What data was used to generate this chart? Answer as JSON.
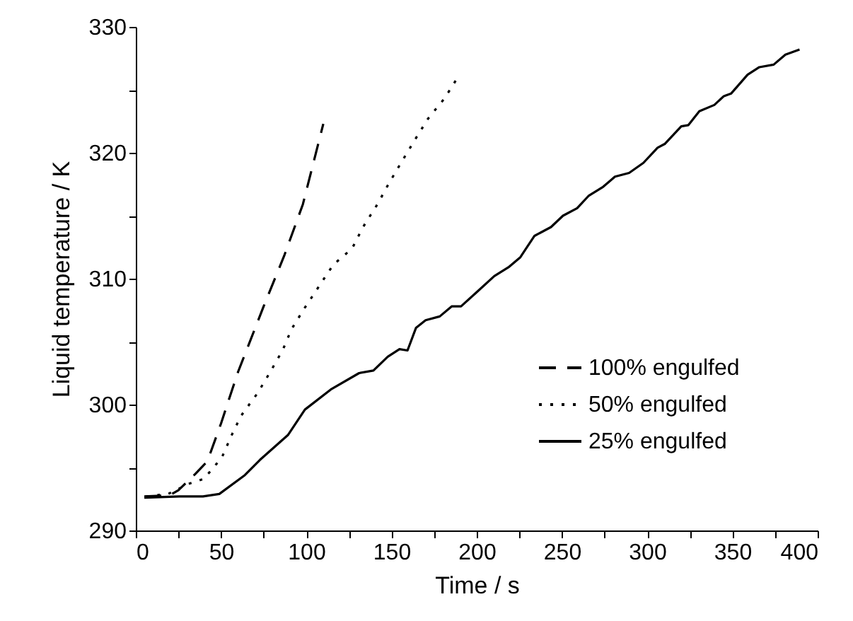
{
  "chart_data": {
    "type": "line",
    "xlabel": "Time / s",
    "ylabel": "Liquid temperature / K",
    "xlim": [
      0,
      400
    ],
    "ylim": [
      290,
      330
    ],
    "xticks": [
      0,
      {
        "value": 25,
        "label": null
      },
      50,
      {
        "value": 75,
        "label": null
      },
      100,
      {
        "value": 125,
        "label": null
      },
      150,
      {
        "value": 175,
        "label": null
      },
      200,
      {
        "value": 225,
        "label": null
      },
      250,
      {
        "value": 275,
        "label": null
      },
      300,
      {
        "value": 325,
        "label": null
      },
      350,
      {
        "value": 375,
        "label": null
      },
      400
    ],
    "yticks": [
      290,
      {
        "value": 295,
        "label": null
      },
      300,
      {
        "value": 305,
        "label": null
      },
      310,
      {
        "value": 315,
        "label": null
      },
      320,
      {
        "value": 325,
        "label": null
      },
      330
    ],
    "grid": false,
    "legend": "bottom right",
    "marker": "none",
    "series": [
      {
        "name": "100% engulfed",
        "color": "#000000",
        "line_style": "dashed",
        "x": [
          5,
          20,
          25,
          35,
          42,
          50,
          60,
          75,
          87,
          98,
          110
        ],
        "values": [
          292.7,
          292.8,
          293.2,
          294.5,
          295.5,
          298.5,
          302.6,
          307.8,
          311.8,
          315.9,
          322.3
        ]
      },
      {
        "name": "50% engulfed",
        "color": "#000000",
        "line_style": "dotted",
        "x": [
          6,
          19,
          31,
          40,
          50.5,
          56,
          61.7,
          71.4,
          78.9,
          86.1,
          91.4,
          99.2,
          107.5,
          115.8,
          126.9,
          133.3,
          141.7,
          148.6,
          155.6,
          163.6,
          171.4,
          181,
          189.4
        ],
        "values": [
          292.7,
          292.9,
          293.7,
          294.1,
          295.8,
          297.5,
          299.1,
          300.9,
          302.6,
          304.3,
          306,
          307.7,
          309.4,
          311.1,
          312.4,
          314.1,
          315.9,
          317.6,
          319.2,
          321,
          322.7,
          324.3,
          326.1
        ]
      },
      {
        "name": "25% engulfed",
        "color": "#000000",
        "line_style": "solid",
        "x": [
          5,
          25.6,
          39.4,
          49,
          64,
          72.8,
          89.4,
          99.2,
          114.4,
          131,
          139.4,
          147.8,
          154.7,
          159.4,
          164.4,
          170,
          178.3,
          185.3,
          190.8,
          200.6,
          210.3,
          218.6,
          225.6,
          233.9,
          243.6,
          250.6,
          258.9,
          265.8,
          274.2,
          281.1,
          289.4,
          297.8,
          306.1,
          310.3,
          320,
          324.2,
          330.6,
          339.4,
          345,
          349.2,
          358.9,
          365.8,
          374.2,
          381.1,
          389.4
        ],
        "values": [
          292.6,
          292.7,
          292.7,
          292.9,
          294.4,
          295.6,
          297.6,
          299.6,
          301.2,
          302.5,
          302.7,
          303.8,
          304.4,
          304.3,
          306.1,
          306.7,
          307,
          307.8,
          307.8,
          309,
          310.2,
          310.9,
          311.7,
          313.4,
          314.1,
          315,
          315.6,
          316.6,
          317.3,
          318.1,
          318.4,
          319.2,
          320.4,
          320.7,
          322.1,
          322.2,
          323.3,
          323.8,
          324.5,
          324.7,
          326.2,
          326.8,
          327,
          327.8,
          328.2
        ]
      }
    ]
  }
}
